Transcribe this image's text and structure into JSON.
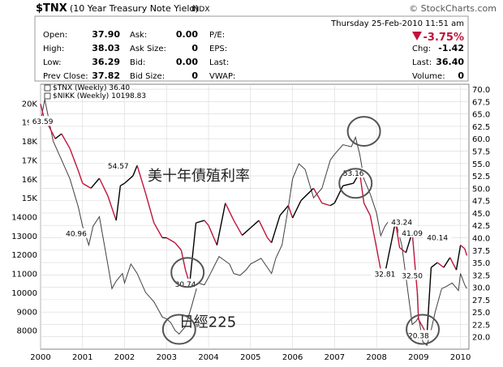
{
  "header": {
    "symbol": "$TNX",
    "name": "(10 Year Treasury Note Yield)",
    "exchange": "INDX",
    "watermark": "© StockCharts.com",
    "datetime": "Thursday  25-Feb-2010  11:51 am",
    "change_pct": "-3.75%",
    "down_color": "#c0143c"
  },
  "quote": {
    "col1": [
      {
        "label": "Open:",
        "value": "37.90"
      },
      {
        "label": "High:",
        "value": "38.03"
      },
      {
        "label": "Low:",
        "value": "36.29"
      },
      {
        "label": "Prev Close:",
        "value": "37.82"
      }
    ],
    "col2": [
      {
        "label": "Ask:",
        "value": "0.00"
      },
      {
        "label": "Ask Size:",
        "value": "0"
      },
      {
        "label": "Bid:",
        "value": "0.00"
      },
      {
        "label": "Bid Size:",
        "value": "0"
      }
    ],
    "col3": [
      {
        "label": "P/E:",
        "value": ""
      },
      {
        "label": "EPS:",
        "value": ""
      },
      {
        "label": "Last:",
        "value": ""
      },
      {
        "label": "VWAP:",
        "value": ""
      }
    ],
    "col4": [
      {
        "label": "Chg:",
        "value": "-1.42"
      },
      {
        "label": "Last:",
        "value": "36.40"
      },
      {
        "label": "Volume:",
        "value": "0"
      }
    ]
  },
  "chart_data": {
    "type": "line",
    "legend_position": "top-left",
    "series": [
      {
        "name": "$TNX (Weekly) 36.40",
        "axis": "right",
        "color": "#000000",
        "down_color": "#c0143c",
        "x": [
          2000.0,
          2000.1,
          2000.2,
          2000.35,
          2000.5,
          2000.7,
          2000.9,
          2001.0,
          2001.2,
          2001.4,
          2001.6,
          2001.8,
          2001.9,
          2002.0,
          2002.2,
          2002.3,
          2002.5,
          2002.7,
          2002.9,
          2003.0,
          2003.2,
          2003.35,
          2003.45,
          2003.55,
          2003.7,
          2003.9,
          2004.0,
          2004.2,
          2004.4,
          2004.6,
          2004.8,
          2005.0,
          2005.2,
          2005.4,
          2005.5,
          2005.7,
          2005.9,
          2006.0,
          2006.2,
          2006.5,
          2006.7,
          2006.9,
          2007.0,
          2007.2,
          2007.45,
          2007.6,
          2007.7,
          2007.85,
          2008.0,
          2008.1,
          2008.2,
          2008.35,
          2008.45,
          2008.55,
          2008.7,
          2008.85,
          2008.9,
          2008.97,
          2009.0,
          2009.1,
          2009.2,
          2009.3,
          2009.45,
          2009.6,
          2009.75,
          2009.9,
          2010.0,
          2010.1,
          2010.15
        ],
        "y": [
          67.0,
          63.6,
          62.5,
          60.0,
          61.0,
          58.0,
          53.5,
          51.0,
          50.0,
          52.0,
          48.5,
          43.5,
          50.5,
          51.0,
          52.5,
          54.6,
          49.0,
          43.0,
          40.0,
          40.0,
          39.0,
          37.5,
          33.5,
          30.7,
          43.0,
          43.5,
          42.5,
          38.5,
          47.0,
          43.5,
          40.5,
          42.0,
          43.5,
          40.0,
          39.0,
          44.5,
          46.5,
          44.0,
          47.5,
          50.0,
          47.0,
          46.5,
          47.0,
          50.5,
          51.0,
          53.2,
          47.0,
          44.5,
          38.0,
          33.5,
          32.8,
          39.0,
          43.2,
          38.0,
          37.0,
          41.1,
          36.0,
          29.0,
          23.5,
          22.0,
          20.4,
          34.0,
          35.0,
          34.0,
          36.0,
          33.5,
          38.5,
          37.8,
          36.4
        ]
      },
      {
        "name": "$NIKK (Weekly) 10198.83",
        "axis": "left",
        "color": "#404040",
        "x": [
          2000.0,
          2000.1,
          2000.3,
          2000.5,
          2000.7,
          2000.9,
          2001.0,
          2001.15,
          2001.25,
          2001.4,
          2001.6,
          2001.7,
          2001.8,
          2001.95,
          2002.0,
          2002.15,
          2002.3,
          2002.5,
          2002.7,
          2002.9,
          2003.0,
          2003.1,
          2003.2,
          2003.3,
          2003.45,
          2003.6,
          2003.75,
          2003.9,
          2004.0,
          2004.25,
          2004.5,
          2004.6,
          2004.75,
          2004.9,
          2005.0,
          2005.25,
          2005.5,
          2005.6,
          2005.75,
          2005.9,
          2006.0,
          2006.15,
          2006.3,
          2006.5,
          2006.7,
          2006.9,
          2007.0,
          2007.2,
          2007.4,
          2007.5,
          2007.6,
          2007.7,
          2007.85,
          2008.0,
          2008.1,
          2008.2,
          2008.3,
          2008.45,
          2008.6,
          2008.75,
          2008.85,
          2008.95,
          2009.0,
          2009.1,
          2009.2,
          2009.3,
          2009.4,
          2009.55,
          2009.65,
          2009.8,
          2009.95,
          2010.0,
          2010.1,
          2010.15
        ],
        "y": [
          19000,
          20200,
          18000,
          17000,
          16000,
          14500,
          13500,
          12500,
          13500,
          14000,
          11500,
          10200,
          10600,
          11000,
          10500,
          11500,
          11000,
          10000,
          9500,
          8700,
          8600,
          8400,
          8000,
          7800,
          8200,
          9300,
          10500,
          10400,
          10800,
          11900,
          11500,
          11000,
          10900,
          11200,
          11500,
          11800,
          11000,
          11800,
          12500,
          14500,
          16000,
          16800,
          16500,
          15000,
          15500,
          17000,
          17300,
          17800,
          17700,
          18200,
          17300,
          16000,
          15200,
          14200,
          13000,
          13500,
          13800,
          13800,
          12500,
          10000,
          8300,
          8500,
          8700,
          7400,
          7200,
          8000,
          9000,
          10200,
          10300,
          10500,
          10100,
          11000,
          10400,
          10200
        ]
      }
    ],
    "x_ticks": [
      "2000",
      "2001",
      "2002",
      "2003",
      "2004",
      "2005",
      "2006",
      "2007",
      "2008",
      "2009",
      "2010"
    ],
    "right_axis": {
      "range": [
        17.5,
        71.0
      ],
      "ticks": [
        "20.0",
        "22.5",
        "25.0",
        "27.5",
        "30.0",
        "32.5",
        "35.0",
        "37.5",
        "40.0",
        "42.5",
        "45.0",
        "47.5",
        "50.0",
        "52.5",
        "55.0",
        "57.5",
        "60.0",
        "62.5",
        "65.0",
        "67.5",
        "70.0"
      ]
    },
    "left_axis": {
      "range": [
        7000,
        21000
      ],
      "ticks": [
        {
          "value": 8000,
          "label": "8000"
        },
        {
          "value": 9000,
          "label": "9000"
        },
        {
          "value": 10000,
          "label": "10000"
        },
        {
          "value": 11000,
          "label": "11000"
        },
        {
          "value": 12000,
          "label": "12000"
        },
        {
          "value": 13000,
          "label": "13000"
        },
        {
          "value": 14000,
          "label": "14000"
        },
        {
          "value": 15000,
          "label": "15K"
        },
        {
          "value": 16000,
          "label": "16K"
        },
        {
          "value": 17000,
          "label": "17K"
        },
        {
          "value": 18000,
          "label": "18K"
        },
        {
          "value": 19000,
          "label": "19K"
        },
        {
          "value": 20000,
          "label": "20K"
        }
      ]
    },
    "grid": true,
    "value_labels": [
      {
        "x": 2000.05,
        "y": 63.6,
        "text": "63.59"
      },
      {
        "x": 2001.85,
        "y": 54.6,
        "text": "54.57"
      },
      {
        "x": 2000.85,
        "y": 40.96,
        "text": "40.96"
      },
      {
        "x": 2003.45,
        "y": 30.74,
        "text": "30.74"
      },
      {
        "x": 2007.45,
        "y": 53.16,
        "text": "53.16"
      },
      {
        "x": 2008.6,
        "y": 43.24,
        "text": "43.24"
      },
      {
        "x": 2008.2,
        "y": 32.81,
        "text": "32.81"
      },
      {
        "x": 2008.85,
        "y": 41.09,
        "text": "41.09"
      },
      {
        "x": 2008.85,
        "y": 32.5,
        "text": "32.50"
      },
      {
        "x": 2009.45,
        "y": 40.14,
        "text": "40.14"
      },
      {
        "x": 2009.0,
        "y": 20.38,
        "text": "20.38"
      }
    ],
    "annotations": [
      {
        "text": "美十年債殖利率",
        "x": 2002.55,
        "y": 51.5
      },
      {
        "text": "日經225",
        "x": 2003.3,
        "y": 22.0
      }
    ],
    "circles": [
      {
        "x": 2007.7,
        "y": 61.5
      },
      {
        "x": 2007.5,
        "y": 51.0
      },
      {
        "x": 2003.5,
        "y": 33.0
      },
      {
        "x": 2003.3,
        "y": 21.5
      },
      {
        "x": 2009.1,
        "y": 21.5
      }
    ]
  }
}
